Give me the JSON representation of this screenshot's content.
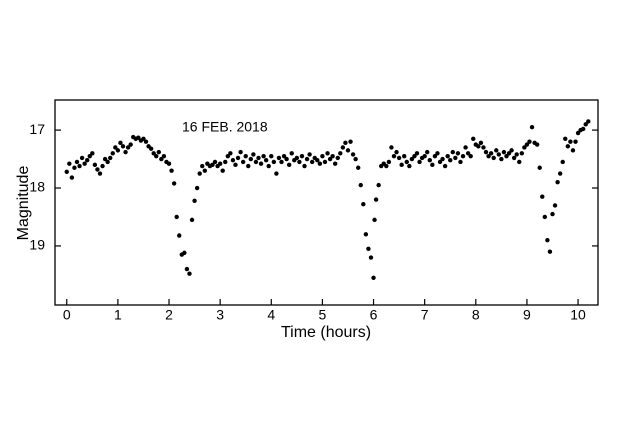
{
  "chart_data": {
    "type": "scatter",
    "annotation": "16 FEB. 2018",
    "xlabel": "Time (hours)",
    "ylabel": "Magnitude",
    "color": "#000000",
    "xlim": [
      -0.23,
      10.39
    ],
    "xticks": [
      0,
      1,
      2,
      3,
      4,
      5,
      6,
      7,
      8,
      9,
      10
    ],
    "ylim": [
      20.02,
      16.48
    ],
    "yticks": [
      17,
      18,
      19
    ],
    "x": [
      0.0,
      0.05,
      0.1,
      0.15,
      0.2,
      0.25,
      0.3,
      0.35,
      0.4,
      0.45,
      0.5,
      0.55,
      0.6,
      0.65,
      0.7,
      0.75,
      0.8,
      0.85,
      0.9,
      0.95,
      1.0,
      1.05,
      1.1,
      1.15,
      1.2,
      1.25,
      1.3,
      1.35,
      1.4,
      1.45,
      1.5,
      1.55,
      1.6,
      1.65,
      1.7,
      1.75,
      1.8,
      1.85,
      1.9,
      1.95,
      2.0,
      2.05,
      2.1,
      2.15,
      2.2,
      2.25,
      2.3,
      2.35,
      2.4,
      2.45,
      2.5,
      2.55,
      2.6,
      2.65,
      2.7,
      2.75,
      2.8,
      2.85,
      2.9,
      2.95,
      3.0,
      3.05,
      3.1,
      3.15,
      3.2,
      3.25,
      3.3,
      3.35,
      3.4,
      3.45,
      3.5,
      3.55,
      3.6,
      3.65,
      3.7,
      3.75,
      3.8,
      3.85,
      3.9,
      3.95,
      4.0,
      4.05,
      4.1,
      4.15,
      4.2,
      4.25,
      4.3,
      4.35,
      4.4,
      4.45,
      4.5,
      4.55,
      4.6,
      4.65,
      4.7,
      4.75,
      4.8,
      4.85,
      4.9,
      4.95,
      5.0,
      5.05,
      5.1,
      5.15,
      5.2,
      5.25,
      5.3,
      5.35,
      5.4,
      5.45,
      5.5,
      5.55,
      5.6,
      5.65,
      5.7,
      5.75,
      5.8,
      5.85,
      5.9,
      5.95,
      6.0,
      6.02,
      6.05,
      6.1,
      6.15,
      6.2,
      6.25,
      6.3,
      6.35,
      6.4,
      6.45,
      6.5,
      6.55,
      6.6,
      6.65,
      6.7,
      6.75,
      6.8,
      6.85,
      6.9,
      6.95,
      7.0,
      7.05,
      7.1,
      7.15,
      7.2,
      7.25,
      7.3,
      7.35,
      7.4,
      7.45,
      7.5,
      7.55,
      7.6,
      7.65,
      7.7,
      7.75,
      7.8,
      7.85,
      7.9,
      7.95,
      8.0,
      8.05,
      8.1,
      8.15,
      8.2,
      8.25,
      8.3,
      8.35,
      8.4,
      8.45,
      8.5,
      8.55,
      8.6,
      8.65,
      8.7,
      8.75,
      8.8,
      8.85,
      8.9,
      8.95,
      9.0,
      9.05,
      9.1,
      9.15,
      9.2,
      9.25,
      9.3,
      9.35,
      9.4,
      9.45,
      9.5,
      9.55,
      9.6,
      9.65,
      9.7,
      9.75,
      9.8,
      9.85,
      9.9,
      9.95,
      10.0,
      10.05,
      10.1,
      10.15,
      10.2
    ],
    "values": [
      17.72,
      17.58,
      17.82,
      17.65,
      17.55,
      17.62,
      17.48,
      17.58,
      17.52,
      17.45,
      17.4,
      17.6,
      17.68,
      17.75,
      17.62,
      17.5,
      17.55,
      17.48,
      17.4,
      17.3,
      17.35,
      17.22,
      17.28,
      17.38,
      17.3,
      17.25,
      17.12,
      17.15,
      17.13,
      17.18,
      17.15,
      17.2,
      17.28,
      17.32,
      17.4,
      17.45,
      17.38,
      17.5,
      17.45,
      17.55,
      17.58,
      17.7,
      17.92,
      18.5,
      18.82,
      19.15,
      19.12,
      19.4,
      19.48,
      18.55,
      18.22,
      18.0,
      17.75,
      17.62,
      17.7,
      17.58,
      17.62,
      17.6,
      17.55,
      17.62,
      17.58,
      17.7,
      17.55,
      17.45,
      17.4,
      17.52,
      17.6,
      17.48,
      17.38,
      17.55,
      17.45,
      17.62,
      17.5,
      17.42,
      17.55,
      17.48,
      17.58,
      17.45,
      17.52,
      17.62,
      17.45,
      17.55,
      17.75,
      17.48,
      17.55,
      17.45,
      17.5,
      17.6,
      17.4,
      17.52,
      17.48,
      17.55,
      17.45,
      17.62,
      17.5,
      17.42,
      17.55,
      17.48,
      17.52,
      17.58,
      17.45,
      17.55,
      17.4,
      17.5,
      17.45,
      17.58,
      17.48,
      17.4,
      17.3,
      17.22,
      17.35,
      17.2,
      17.42,
      17.5,
      17.65,
      17.95,
      18.28,
      18.8,
      19.05,
      19.2,
      19.55,
      18.55,
      18.2,
      17.95,
      17.62,
      17.58,
      17.62,
      17.55,
      17.3,
      17.45,
      17.38,
      17.48,
      17.6,
      17.45,
      17.55,
      17.62,
      17.5,
      17.45,
      17.4,
      17.55,
      17.48,
      17.45,
      17.38,
      17.52,
      17.6,
      17.45,
      17.4,
      17.55,
      17.5,
      17.62,
      17.45,
      17.52,
      17.38,
      17.48,
      17.4,
      17.55,
      17.45,
      17.3,
      17.4,
      17.45,
      17.15,
      17.25,
      17.28,
      17.22,
      17.3,
      17.38,
      17.45,
      17.4,
      17.48,
      17.35,
      17.42,
      17.5,
      17.38,
      17.45,
      17.4,
      17.35,
      17.48,
      17.42,
      17.55,
      17.4,
      17.3,
      17.25,
      17.2,
      16.95,
      17.22,
      17.25,
      17.65,
      18.15,
      18.5,
      18.9,
      19.1,
      18.45,
      18.3,
      17.9,
      17.75,
      17.55,
      17.15,
      17.28,
      17.2,
      17.35,
      17.2,
      17.05,
      17.0,
      16.98,
      16.9,
      16.85
    ]
  }
}
